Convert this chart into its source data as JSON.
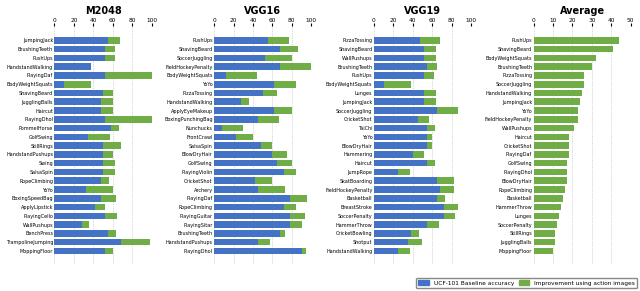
{
  "panels": [
    {
      "title": "M2048",
      "categories": [
        "JumpingJack",
        "BrushingTeeth",
        "PushUps",
        "HandstandWalking",
        "PlayingDaf",
        "BodyWeightSquats",
        "ShavingBeard",
        "JugglingBalls",
        "Haircut",
        "PlayingDhol",
        "PommelHorse",
        "GolfSwing",
        "StillRings",
        "HandstandPushups",
        "Swing",
        "SalsaSpin",
        "RopeClimbing",
        "YoYo",
        "BoxingSpeedBag",
        "ApplyLipstick",
        "PlayingCello",
        "WallPushups",
        "BenchPress",
        "TrampolineJumping",
        "MoppingFloor"
      ],
      "blue": [
        55,
        52,
        52,
        38,
        52,
        10,
        50,
        48,
        48,
        52,
        58,
        35,
        50,
        50,
        50,
        50,
        48,
        32,
        48,
        42,
        52,
        28,
        55,
        68,
        52
      ],
      "green": [
        12,
        10,
        10,
        0,
        48,
        28,
        10,
        12,
        12,
        48,
        8,
        22,
        18,
        10,
        12,
        12,
        8,
        28,
        15,
        10,
        12,
        8,
        8,
        30,
        8
      ],
      "has_blue": true
    },
    {
      "title": "VGG16",
      "categories": [
        "PushUps",
        "ShavingBeard",
        "SoccerJuggling",
        "FieldHockeyPenalty",
        "BodyWeightSquats",
        "YoYo",
        "PizzaTossing",
        "HandstandWalking",
        "ApplyEyeMakeup",
        "BoxingPunchingBag",
        "Nunchucks",
        "FrontCrawl",
        "SalsaSpin",
        "BlowDryHair",
        "GolfSwing",
        "PlayingViolin",
        "CricketShot",
        "Archery",
        "PlayingDaf",
        "RopeClimbing",
        "PlayingGuitar",
        "PlayingSitar",
        "BrushingTeeth",
        "HandstandPushups",
        "PlayingDhol"
      ],
      "blue": [
        55,
        68,
        52,
        68,
        12,
        62,
        50,
        28,
        62,
        45,
        8,
        22,
        48,
        60,
        65,
        72,
        42,
        45,
        78,
        72,
        78,
        78,
        68,
        45,
        90
      ],
      "green": [
        22,
        18,
        28,
        32,
        32,
        22,
        15,
        8,
        18,
        22,
        22,
        18,
        12,
        15,
        15,
        12,
        18,
        28,
        18,
        12,
        15,
        12,
        5,
        12,
        5
      ],
      "has_blue": true
    },
    {
      "title": "VGG19",
      "categories": [
        "PizzaTossing",
        "ShavingBeard",
        "WallPushups",
        "BrushingTeeth",
        "PushUps",
        "BodyWeightSquats",
        "Lunges",
        "JumpingJack",
        "SoccerJuggling",
        "CricketShot",
        "TaiChi",
        "YoYo",
        "BlowDryHair",
        "Hammering",
        "Haircut",
        "JumpRope",
        "SkatBoarding",
        "FieldHockeyPenalty",
        "Basketball",
        "BreastStroke",
        "SoccerPenalty",
        "HammerThrow",
        "CricketBowling",
        "Shotput",
        "HandstandWalking"
      ],
      "blue": [
        48,
        52,
        52,
        55,
        52,
        10,
        52,
        52,
        65,
        45,
        55,
        55,
        55,
        40,
        55,
        25,
        65,
        68,
        65,
        72,
        72,
        55,
        38,
        35,
        25
      ],
      "green": [
        20,
        12,
        12,
        10,
        10,
        28,
        12,
        12,
        22,
        12,
        8,
        5,
        5,
        12,
        8,
        12,
        18,
        15,
        8,
        15,
        12,
        12,
        8,
        15,
        12
      ],
      "has_blue": true
    },
    {
      "title": "Average",
      "categories": [
        "PushUps",
        "ShavingBeard",
        "BodyWeightSquats",
        "BrushingTeeth",
        "PizzaTossing",
        "SoccerJuggling",
        "HandstandWalking",
        "JumpingJack",
        "YoYo",
        "FieldHockeyPenalty",
        "WallPushups",
        "Haircut",
        "CricketShot",
        "PlayingDaf",
        "GolfSwing",
        "PlayingDhol",
        "BlowDryHair",
        "RopeClimbing",
        "Basketball",
        "HammerThrow",
        "Lunges",
        "SoccerPenalty",
        "StillRings",
        "JugglingBalls",
        "MoppingFloor"
      ],
      "blue": [
        0,
        0,
        0,
        0,
        0,
        0,
        0,
        0,
        0,
        0,
        0,
        0,
        0,
        0,
        0,
        0,
        0,
        0,
        0,
        0,
        0,
        0,
        0,
        0,
        0
      ],
      "green": [
        44,
        41,
        32,
        30,
        26,
        26,
        25,
        24,
        23,
        23,
        21,
        18,
        18,
        18,
        17,
        17,
        17,
        16,
        15,
        14,
        13,
        12,
        11,
        11,
        10
      ],
      "has_blue": false
    }
  ],
  "blue_color": "#4472c4",
  "green_color": "#70ad47",
  "legend_blue": "UCF-101 Baseline accuracy",
  "legend_green": "Improvement using action images",
  "xlim": [
    0,
    100
  ],
  "xticks": [
    0,
    20,
    40,
    60,
    80,
    100
  ],
  "avg_xlim": [
    0,
    50
  ],
  "avg_xticks": [
    0,
    10,
    20,
    30,
    40,
    50
  ]
}
